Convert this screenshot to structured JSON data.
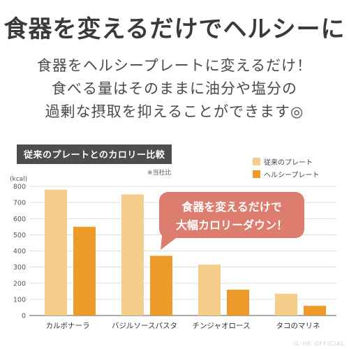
{
  "headline": "食器を変えるだけでヘルシーに",
  "lead": [
    "食器をヘルシープレートに変えるだけ！",
    "食べる量はそのままに油分や塩分の",
    "過剰な摂取を抑えることができます◎"
  ],
  "chart_title": "従来のプレートとのカロリー比較",
  "note": "※当社比",
  "watermark": "IL-HE OFFICIAL",
  "callout": [
    "食器を変えるだけで",
    "大幅カロリーダウン！"
  ],
  "colors": {
    "conventional": "#f5cd8b",
    "healthy": "#ec9a2a",
    "callout": "#dd7d6f",
    "grid": "#d4d4d4",
    "axis": "#555555"
  },
  "chart_data": {
    "type": "bar",
    "title": "従来のプレートとのカロリー比較",
    "ylabel": "(kcal)",
    "xlabel": "",
    "ylim": [
      0,
      800
    ],
    "yticks": [
      0,
      100,
      200,
      300,
      400,
      500,
      600,
      700,
      800
    ],
    "grid": true,
    "legend_position": "top-right",
    "categories": [
      "カルボナーラ",
      "バジルソースパスタ",
      "チンジャオロース",
      "タコのマリネ"
    ],
    "series": [
      {
        "name": "従来のプレート",
        "values": [
          780,
          750,
          315,
          135
        ]
      },
      {
        "name": "ヘルシープレート",
        "values": [
          550,
          370,
          160,
          60
        ]
      }
    ]
  }
}
